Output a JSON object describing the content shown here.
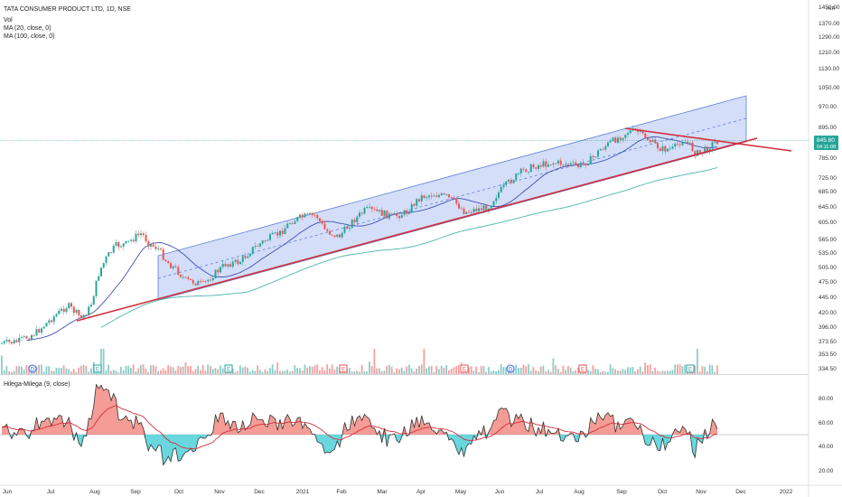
{
  "header": {
    "symbol_line": "TATA CONSUMER PRODUCT LTD, 1D, NSE",
    "vol_label": "Vol",
    "ma20_label": "MA (20, close, 0)",
    "ma100_label": "MA (100, close, 0)",
    "indicator_label": "Hilega-Milega (9, close)",
    "currency": "INR"
  },
  "price_badge": {
    "price": "845.60",
    "countdown": "04:11:08"
  },
  "colors": {
    "up": "#26a69a",
    "down": "#ef5350",
    "trendline": "#d32f3a",
    "channel_fill": "#c5d3f5",
    "channel_line": "#5b7fd6",
    "ma20": "#3f51b5",
    "ma100": "#4db6ac",
    "rsi_up_fill": "#f28b82",
    "rsi_down_fill": "#4dd0d8",
    "badge": "#26a69a"
  },
  "chart_data": [
    {
      "type": "candlestick",
      "title": "TATA CONSUMER PRODUCT LTD, 1D, NSE",
      "x_ticks": [
        "Jun",
        "Jul",
        "Aug",
        "Sep",
        "Oct",
        "Nov",
        "Dec",
        "2021",
        "Feb",
        "Mar",
        "Apr",
        "May",
        "Jun",
        "Jul",
        "Aug",
        "Sep",
        "Oct",
        "Nov",
        "Dec",
        "2022"
      ],
      "y_ticks": [
        "1450.00",
        "1370.00",
        "1290.00",
        "1210.00",
        "1130.00",
        "1050.00",
        "970.00",
        "895.00",
        "845.60",
        "785.00",
        "725.00",
        "685.00",
        "645.00",
        "605.00",
        "565.00",
        "535.00",
        "505.00",
        "475.00",
        "445.00",
        "420.00",
        "396.00",
        "373.50",
        "353.50",
        "334.50"
      ],
      "y_scale": "log",
      "ylim": [
        334.5,
        1450
      ],
      "last_close": 845.6,
      "monthly_close": [
        {
          "month": "Jun 2020",
          "close": 372
        },
        {
          "month": "Jul 2020",
          "close": 410
        },
        {
          "month": "Aug 2020",
          "close": 550
        },
        {
          "month": "Sep 2020",
          "close": 530
        },
        {
          "month": "Oct 2020",
          "close": 470
        },
        {
          "month": "Nov 2020",
          "close": 535
        },
        {
          "month": "Dec 2020",
          "close": 600
        },
        {
          "month": "Jan 2021",
          "close": 585
        },
        {
          "month": "Feb 2021",
          "close": 630
        },
        {
          "month": "Mar 2021",
          "close": 660
        },
        {
          "month": "Apr 2021",
          "close": 680
        },
        {
          "month": "May 2021",
          "close": 630
        },
        {
          "month": "Jun 2021",
          "close": 720
        },
        {
          "month": "Jul 2021",
          "close": 775
        },
        {
          "month": "Aug 2021",
          "close": 790
        },
        {
          "month": "Sep 2021",
          "close": 890
        },
        {
          "month": "Oct 2021",
          "close": 820
        },
        {
          "month": "Nov 2021",
          "close": 845.6
        }
      ],
      "series": [
        {
          "name": "MA (20, close, 0)"
        },
        {
          "name": "MA (100, close, 0)"
        },
        {
          "name": "Vol"
        }
      ],
      "annotations": [
        "Rising regression channel from Sep 2020 to Nov 2021",
        "Rising support trendline from Jul 2020",
        "Falling resistance trendline from Sep 2021"
      ]
    },
    {
      "type": "line",
      "title": "Hilega-Milega (9, close)",
      "y_ticks": [
        "80.00",
        "60.00",
        "40.00",
        "20.00"
      ],
      "ylim": [
        15,
        95
      ],
      "baseline": 50
    }
  ]
}
